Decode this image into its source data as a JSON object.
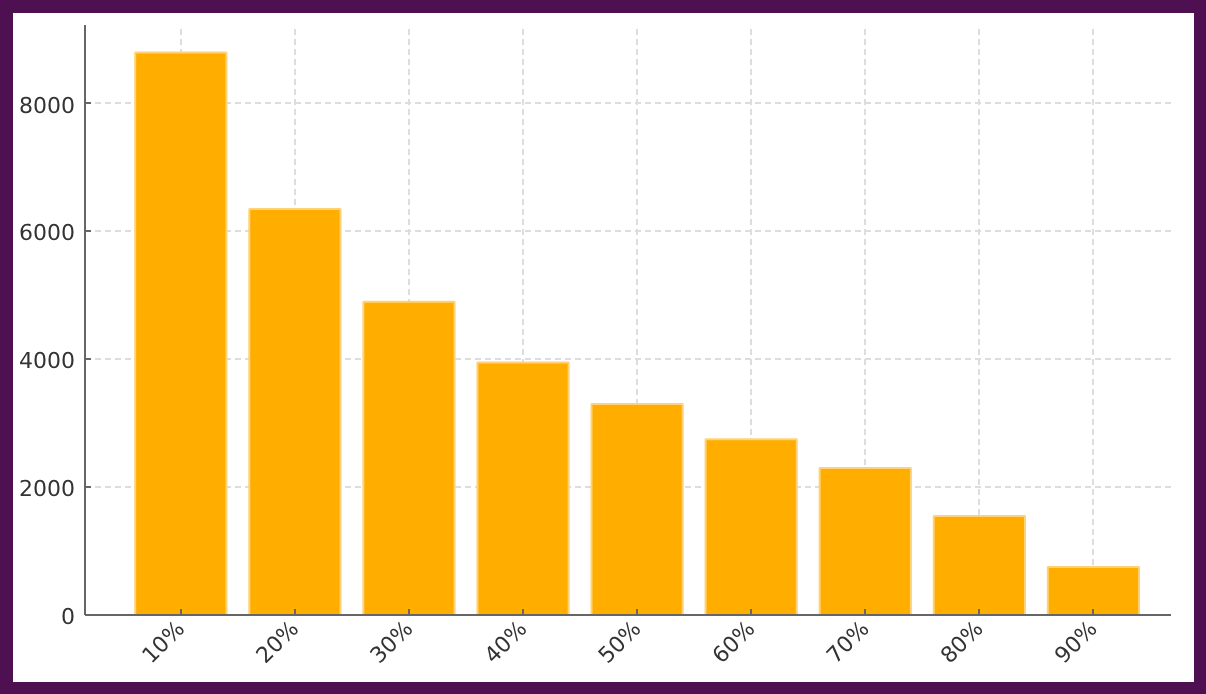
{
  "chart_data": {
    "type": "bar",
    "categories": [
      "10%",
      "20%",
      "30%",
      "40%",
      "50%",
      "60%",
      "70%",
      "80%",
      "90%"
    ],
    "values": [
      8800,
      6350,
      4900,
      3950,
      3300,
      2750,
      2300,
      1550,
      750
    ],
    "color": "#ffae00",
    "ylim": [
      0,
      9230
    ],
    "yticks": [
      0,
      2000,
      4000,
      6000,
      8000
    ],
    "grid": true
  }
}
